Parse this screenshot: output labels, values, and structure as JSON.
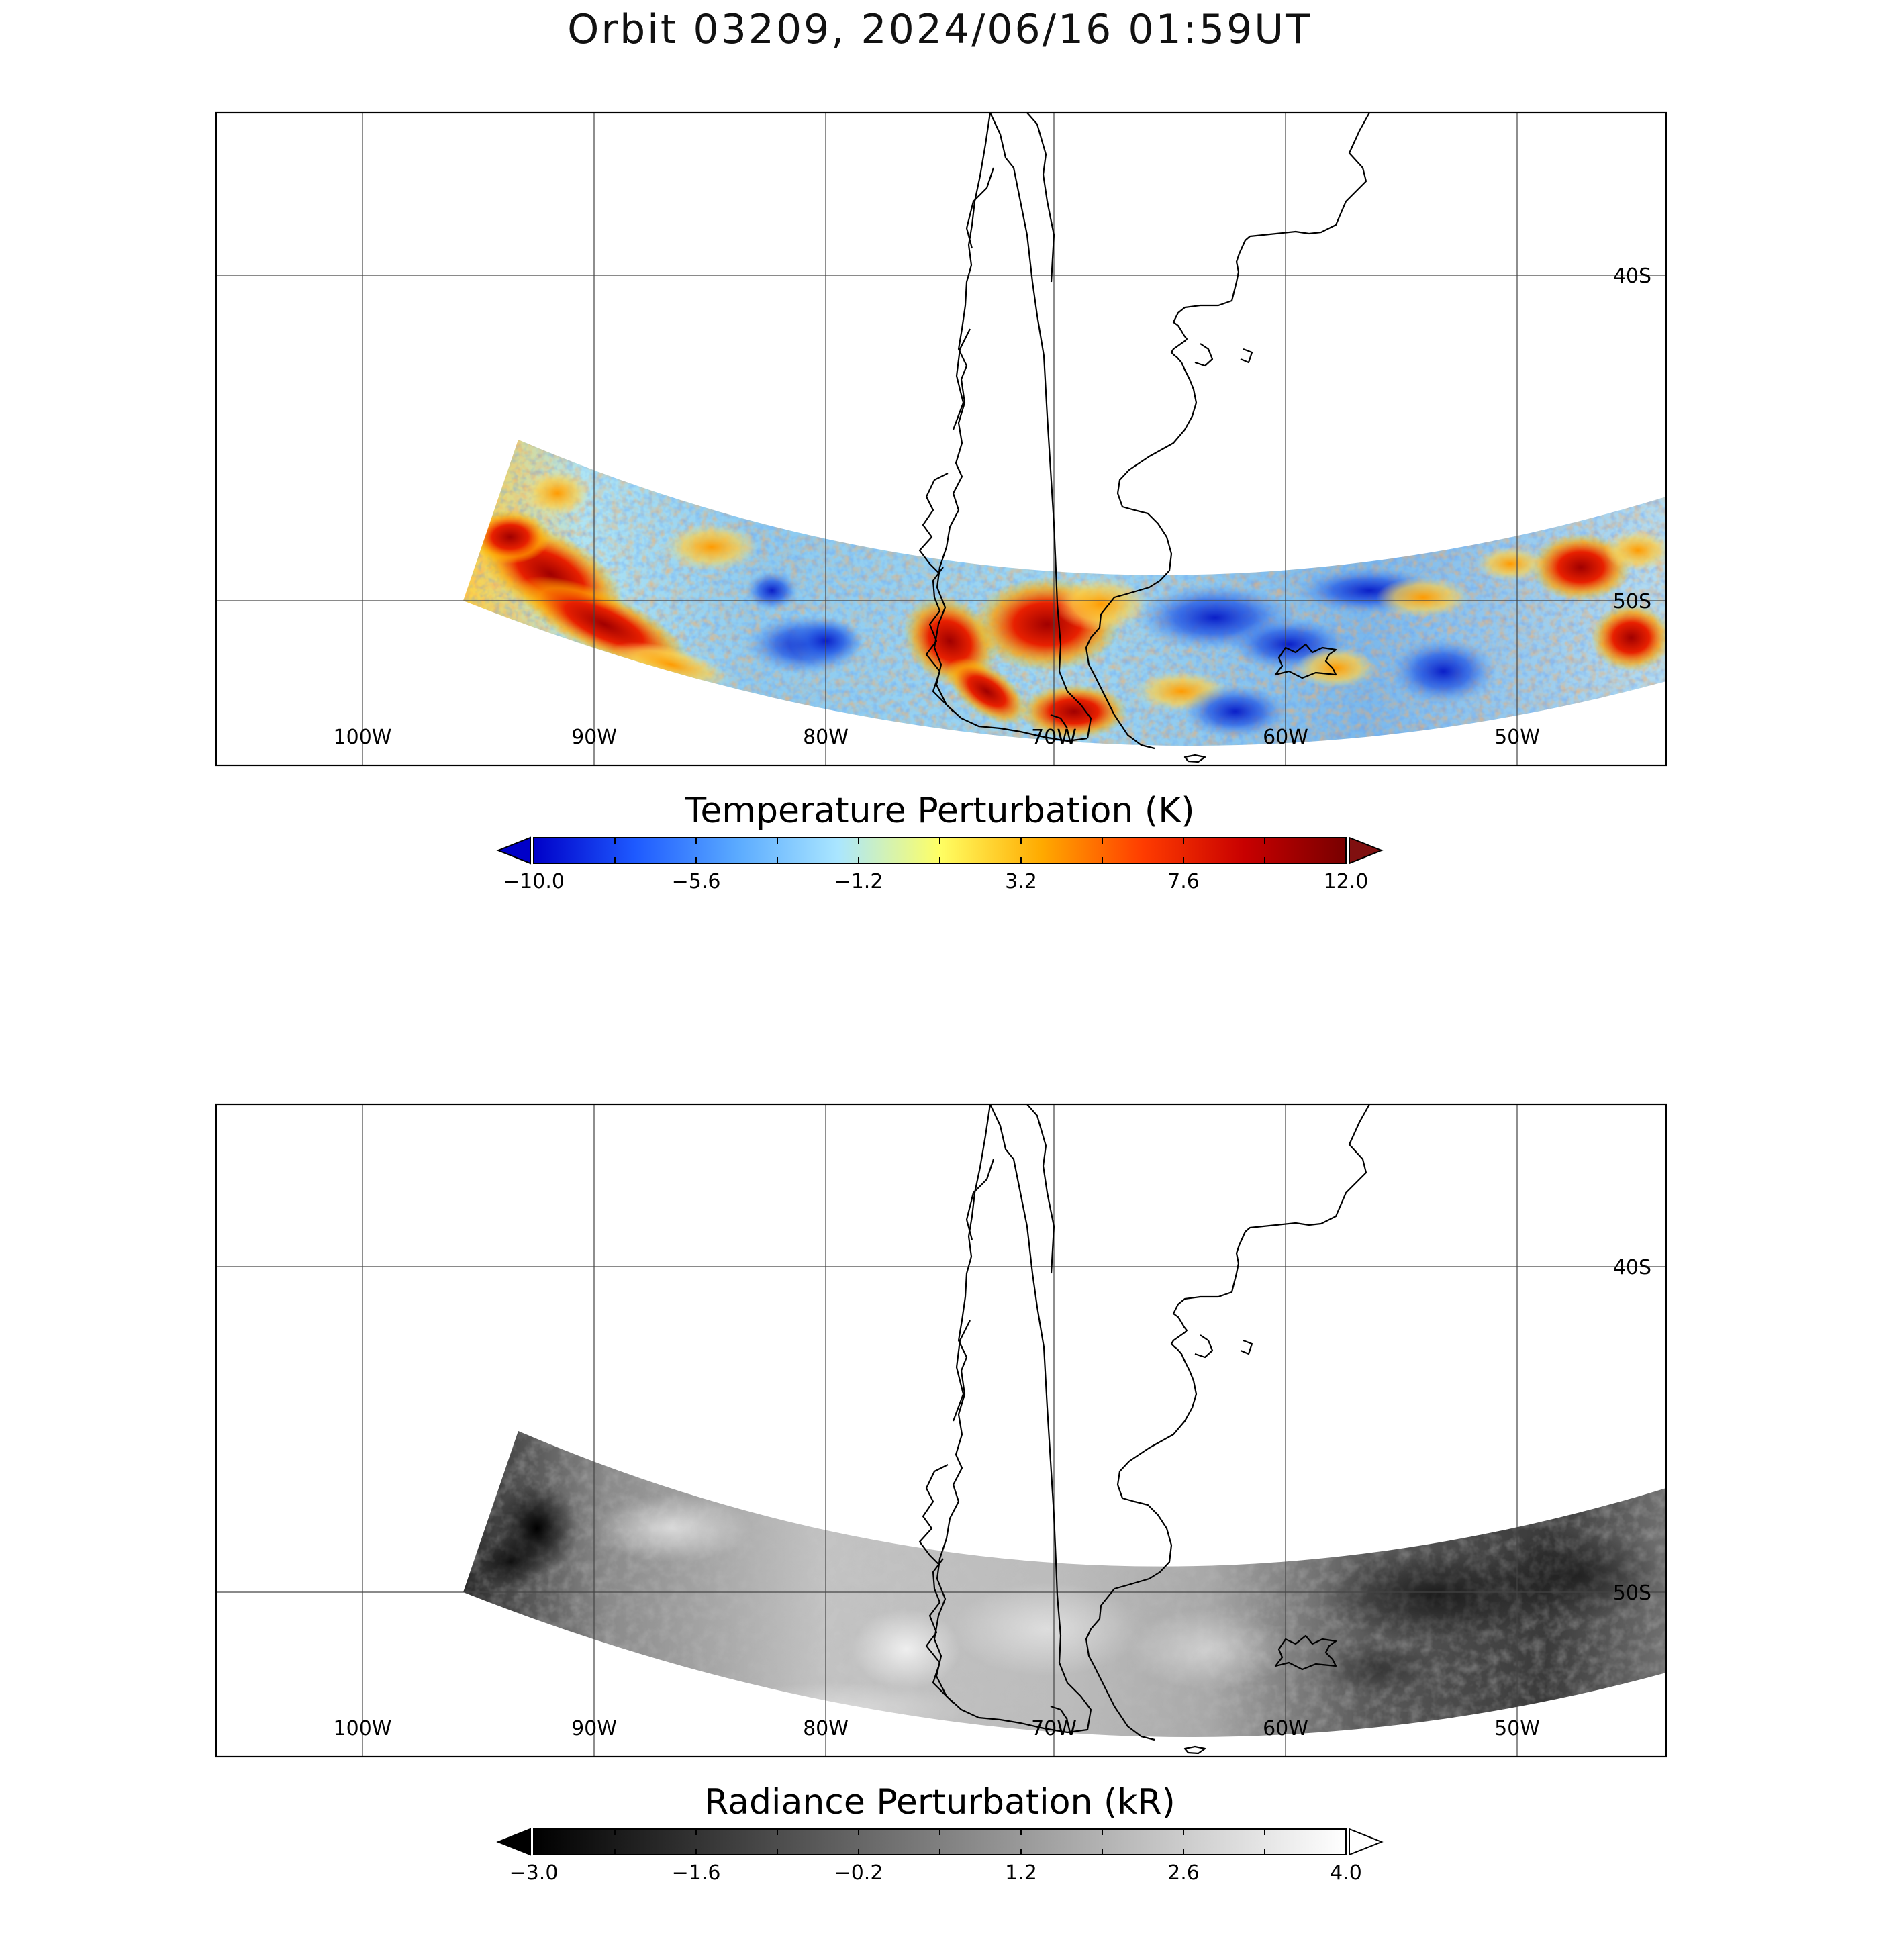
{
  "title": "Orbit 03209, 2024/06/16 01:59UT",
  "map": {
    "lon_labels": [
      "100W",
      "90W",
      "80W",
      "70W",
      "60W",
      "50W"
    ],
    "lat_labels": [
      "40S",
      "50S"
    ],
    "lon_range": [
      -106.5,
      -43.5
    ],
    "lat_range": [
      -35.0,
      -55.0
    ]
  },
  "panels": [
    {
      "id": "temperature",
      "colorbar_label": "Temperature Perturbation (K)",
      "colorbar_ticks": [
        "−10.0",
        "−5.6",
        "−1.2",
        "3.2",
        "7.6",
        "12.0"
      ],
      "range": [
        -10.0,
        12.0
      ],
      "colormap": [
        "#0000c8",
        "#1e5aff",
        "#5aaaff",
        "#aae6ff",
        "#ffff64",
        "#ffaa00",
        "#ff3c00",
        "#c80000",
        "#780000"
      ],
      "under_color": "#0000c8",
      "over_color": "#801010"
    },
    {
      "id": "radiance",
      "colorbar_label": "Radiance Perturbation (kR)",
      "colorbar_ticks": [
        "−3.0",
        "−1.6",
        "−0.2",
        "1.2",
        "2.6",
        "4.0"
      ],
      "range": [
        -3.0,
        4.0
      ],
      "colormap": [
        "#000000",
        "#ffffff"
      ],
      "under_color": "#000000",
      "over_color": "#ffffff"
    }
  ]
}
